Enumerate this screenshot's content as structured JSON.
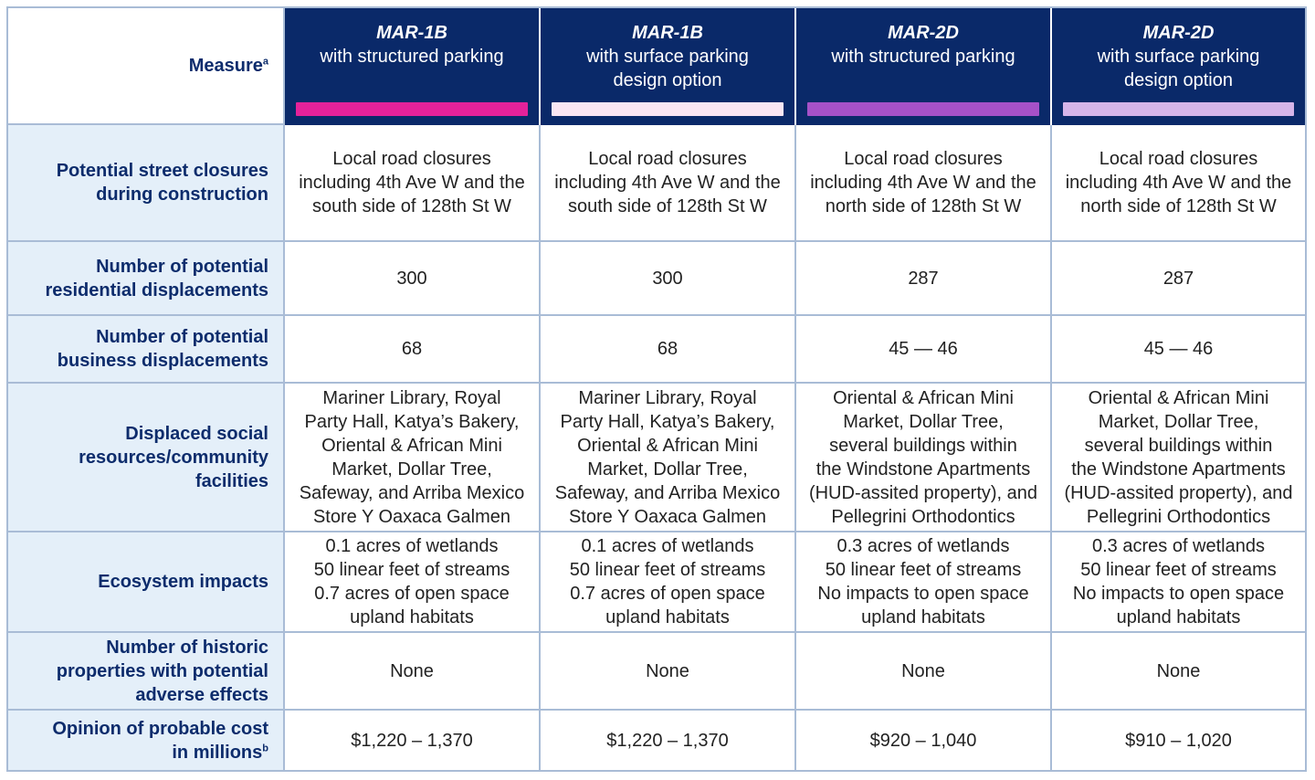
{
  "header": {
    "measure_label": "Measure",
    "measure_sup": "a",
    "columns": [
      {
        "title": "MAR-1B",
        "subtitle": [
          "with structured parking"
        ],
        "color": "#e5229a"
      },
      {
        "title": "MAR-1B",
        "subtitle": [
          "with surface parking",
          "design option"
        ],
        "color": "#fbe6f3"
      },
      {
        "title": "MAR-2D",
        "subtitle": [
          "with structured parking"
        ],
        "color": "#a651c8"
      },
      {
        "title": "MAR-2D",
        "subtitle": [
          "with surface parking",
          "design option"
        ],
        "color": "#d6b5e9"
      }
    ]
  },
  "rows": [
    {
      "label": [
        "Potential street closures",
        "during construction"
      ],
      "cells": [
        [
          "Local road closures",
          "including 4th Ave W and the",
          "south side of 128th St W"
        ],
        [
          "Local road closures",
          "including 4th Ave W and the",
          "south side of 128th St W"
        ],
        [
          "Local road closures",
          "including 4th Ave W and the",
          "north side of 128th St W"
        ],
        [
          "Local road closures",
          "including 4th Ave W and the",
          "north side of 128th St W"
        ]
      ]
    },
    {
      "label": [
        "Number of potential",
        "residential displacements"
      ],
      "cells": [
        [
          "300"
        ],
        [
          "300"
        ],
        [
          "287"
        ],
        [
          "287"
        ]
      ]
    },
    {
      "label": [
        "Number of potential",
        "business displacements"
      ],
      "cells": [
        [
          "68"
        ],
        [
          "68"
        ],
        [
          "45 — 46"
        ],
        [
          "45 — 46"
        ]
      ]
    },
    {
      "label": [
        "Displaced social",
        "resources/community",
        "facilities"
      ],
      "cells": [
        [
          "Mariner Library, Royal",
          "Party Hall, Katya’s Bakery,",
          "Oriental & African Mini",
          "Market, Dollar Tree,",
          "Safeway, and Arriba Mexico",
          "Store Y Oaxaca Galmen"
        ],
        [
          "Mariner Library, Royal",
          "Party Hall, Katya’s Bakery,",
          "Oriental & African Mini",
          "Market, Dollar Tree,",
          "Safeway, and Arriba Mexico",
          "Store Y Oaxaca Galmen"
        ],
        [
          "Oriental & African Mini",
          "Market, Dollar Tree,",
          "several buildings within",
          "the Windstone Apartments",
          "(HUD-assited property), and",
          "Pellegrini Orthodontics"
        ],
        [
          "Oriental & African Mini",
          "Market, Dollar Tree,",
          "several buildings within",
          "the Windstone Apartments",
          "(HUD-assited property), and",
          "Pellegrini Orthodontics"
        ]
      ]
    },
    {
      "label": [
        "Ecosystem impacts"
      ],
      "cells": [
        [
          "0.1 acres of wetlands",
          "50 linear feet of streams",
          "0.7 acres of open space",
          "upland habitats"
        ],
        [
          "0.1 acres of wetlands",
          "50 linear feet of streams",
          "0.7 acres of open space",
          "upland habitats"
        ],
        [
          "0.3 acres of wetlands",
          "50 linear feet of streams",
          "No impacts to open space",
          "upland habitats"
        ],
        [
          "0.3 acres of wetlands",
          "50 linear feet of streams",
          "No impacts to open space",
          "upland habitats"
        ]
      ]
    },
    {
      "label": [
        "Number of historic",
        "properties with potential",
        "adverse effects"
      ],
      "cells": [
        [
          "None"
        ],
        [
          "None"
        ],
        [
          "None"
        ],
        [
          "None"
        ]
      ]
    },
    {
      "label": [
        "Opinion of probable cost",
        "in millions"
      ],
      "label_sup": "b",
      "cells": [
        [
          "$1,220 – 1,370"
        ],
        [
          "$1,220 – 1,370"
        ],
        [
          "$920 – 1,040"
        ],
        [
          "$910 – 1,020"
        ]
      ]
    }
  ]
}
